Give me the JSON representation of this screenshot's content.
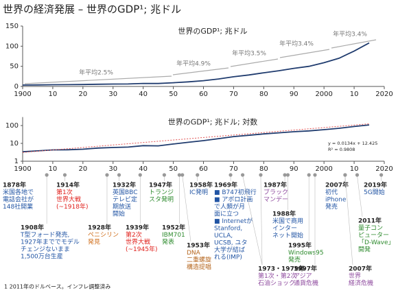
{
  "header": {
    "title": "世界の経済発展 – 世界のGDP¹; 兆ドル"
  },
  "chart_data": [
    {
      "type": "line",
      "title": "世界のGDP¹; 兆ドル",
      "xlim": [
        1900,
        2020
      ],
      "xticks": [
        1900,
        {
          "value": 1910,
          "label": "10"
        },
        {
          "value": 1920,
          "label": "20"
        },
        {
          "value": 1930,
          "label": "30"
        },
        {
          "value": 1940,
          "label": "40"
        },
        {
          "value": 1950,
          "label": "50"
        },
        {
          "value": 1960,
          "label": "60"
        },
        {
          "value": 1970,
          "label": "70"
        },
        {
          "value": 1980,
          "label": "80"
        },
        {
          "value": 1990,
          "label": "90"
        },
        2000,
        {
          "value": 2010,
          "label": "10"
        },
        2020
      ],
      "ylim": [
        0,
        150
      ],
      "yticks": [
        0,
        50,
        100,
        150
      ],
      "grid": false,
      "series": [
        {
          "color": "#1f3b6e",
          "x": [
            1900,
            1905,
            1910,
            1915,
            1920,
            1925,
            1930,
            1935,
            1940,
            1945,
            1950,
            1955,
            1960,
            1965,
            1970,
            1975,
            1980,
            1985,
            1990,
            1995,
            2000,
            2005,
            2010,
            2015
          ],
          "values": [
            3.4,
            3.8,
            4.3,
            4.4,
            4.7,
            5.5,
            5.9,
            6.2,
            7.5,
            7.3,
            9.2,
            11.5,
            14.3,
            18.5,
            24,
            28.5,
            34,
            39,
            45,
            50,
            59,
            70,
            88,
            108
          ]
        }
      ],
      "annotations": [
        "年平均2.5%",
        "年平均4.9%",
        "年平均3.5%",
        "年平均3.4%",
        "年平均3.4%"
      ]
    },
    {
      "type": "line",
      "title": "世界のGDP¹; 兆ドル; 対数",
      "log_scale": true,
      "xlim": [
        1900,
        2020
      ],
      "xticks": [
        1900,
        {
          "value": 1910,
          "label": "10"
        },
        {
          "value": 1920,
          "label": "20"
        },
        {
          "value": 1930,
          "label": "30"
        },
        {
          "value": 1940,
          "label": "40"
        },
        {
          "value": 1950,
          "label": "50"
        },
        {
          "value": 1960,
          "label": "60"
        },
        {
          "value": 1970,
          "label": "70"
        },
        {
          "value": 1980,
          "label": "80"
        },
        {
          "value": 1990,
          "label": "90"
        },
        2000,
        {
          "value": 2010,
          "label": "10"
        },
        2020
      ],
      "ylim": [
        1,
        300
      ],
      "yticks": [
        1,
        10,
        100
      ],
      "grid": false,
      "series": [
        {
          "color": "#1f3b6e",
          "x": [
            1900,
            1905,
            1910,
            1915,
            1920,
            1925,
            1930,
            1935,
            1940,
            1945,
            1950,
            1955,
            1960,
            1965,
            1970,
            1975,
            1980,
            1985,
            1990,
            1995,
            2000,
            2005,
            2010,
            2015
          ],
          "values": [
            3.4,
            3.8,
            4.3,
            4.4,
            4.7,
            5.5,
            5.9,
            6.2,
            7.5,
            7.3,
            9.2,
            11.5,
            14.3,
            18.5,
            24,
            28.5,
            34,
            39,
            45,
            50,
            59,
            70,
            88,
            108
          ]
        },
        {
          "color": "#e05050",
          "dashed": true,
          "x": [
            1900,
            2015
          ],
          "values": [
            3.1,
            125
          ]
        }
      ],
      "annotations": [
        "y = 0.0134x + 12.425",
        "R² = 0.9808"
      ]
    }
  ],
  "timeline": [
    {
      "label": "1878年",
      "years": [
        1878
      ],
      "color": "#2255a4",
      "lines": [
        "米国各地で",
        "電話会社が",
        "148社開業"
      ]
    },
    {
      "label": "1908年",
      "years": [
        1908
      ],
      "color": "#2255a4",
      "lines": [
        "T型フォード発売,",
        "1927年まででモデル",
        "チェンジないまま",
        "1,500万台生産"
      ]
    },
    {
      "label": "1914年",
      "years": [
        1914
      ],
      "color": "#e0201b",
      "lines": [
        "第1次",
        "世界大戦",
        "(~1918年)"
      ]
    },
    {
      "label": "1928年",
      "years": [
        1928
      ],
      "color": "#d0701e",
      "lines": [
        "ペニシリン",
        "発見"
      ]
    },
    {
      "label": "1932年",
      "years": [
        1932
      ],
      "color": "#2255a4",
      "lines": [
        "英国BBC",
        "テレビ定",
        "期放送",
        "開始"
      ]
    },
    {
      "label": "1939年",
      "years": [
        1939
      ],
      "color": "#e0201b",
      "lines": [
        "第2次",
        "世界大戦",
        "(~1945年)"
      ]
    },
    {
      "label": "1947年",
      "years": [
        1947
      ],
      "color": "#2e8b2e",
      "lines": [
        "トランジ",
        "スタ発明"
      ]
    },
    {
      "label": "1952年",
      "years": [
        1952
      ],
      "color": "#2e8b2e",
      "lines": [
        "IBM701",
        "発表"
      ]
    },
    {
      "label": "1953年",
      "years": [
        1953
      ],
      "color": "#b5651d",
      "lines": [
        "DNA",
        "二重螺旋",
        "構造提唱"
      ]
    },
    {
      "label": "1958年",
      "years": [
        1958
      ],
      "color": "#2255a4",
      "lines": [
        "IC発明"
      ]
    },
    {
      "label": "1969年",
      "years": [
        1969
      ],
      "color": "#2255a4",
      "lines": [
        "■ B747初飛行",
        "■ アポロ計画",
        "で人類が月",
        "面に立つ",
        "■ Internetが",
        "Stanford,",
        "UCLA,",
        "UCSB, ユタ",
        "大学が結ば",
        "れる(IMP)"
      ]
    },
    {
      "label": "1987年",
      "years": [
        1987
      ],
      "color": "#8e4a9e",
      "lines": [
        "ブラック",
        "マンデー"
      ]
    },
    {
      "label": "1988年",
      "years": [
        1988
      ],
      "color": "#2255a4",
      "lines": [
        "米国で商用",
        "インター",
        "ネット開始"
      ]
    },
    {
      "label": "1973・1979年",
      "years": [
        1973,
        1979
      ],
      "color": "#8e4a9e",
      "lines": [
        "第1次・第2次",
        "石油ショック"
      ]
    },
    {
      "label": "1995年",
      "years": [
        1995
      ],
      "color": "#2e8b2e",
      "lines": [
        "Windows95",
        "発売"
      ]
    },
    {
      "label": "1997年",
      "years": [
        1997
      ],
      "color": "#8e4a9e",
      "lines": [
        "アジア",
        "通貨危機"
      ]
    },
    {
      "label": "2007年",
      "years": [
        2007
      ],
      "color": "#2255a4",
      "lines": [
        "初代",
        "iPhone",
        "発売"
      ]
    },
    {
      "label": "2011年",
      "years": [
        2011
      ],
      "color": "#2e8b2e",
      "lines": [
        "量子コン",
        "ピューター",
        "「D-Wave」",
        "開発"
      ]
    },
    {
      "label": "2007年",
      "years": [
        2007
      ],
      "color": "#8e4a9e",
      "lines": [
        "世界",
        "経済危機"
      ]
    },
    {
      "label": "2019年",
      "years": [
        2019
      ],
      "color": "#2255a4",
      "lines": [
        "5G開始"
      ]
    }
  ],
  "footnote": "1 2011年のドルベース。インフレ調整済み"
}
